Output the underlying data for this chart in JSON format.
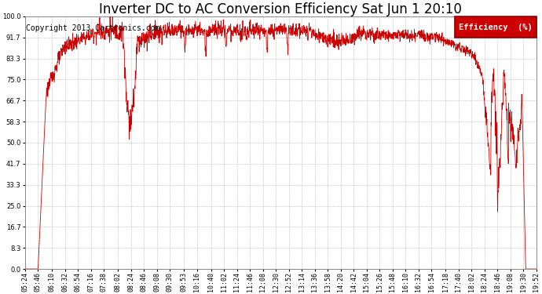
{
  "title": "Inverter DC to AC Conversion Efficiency Sat Jun 1 20:10",
  "copyright": "Copyright 2013 Cartronics.com",
  "legend_label": "Efficiency  (%)",
  "legend_bg": "#cc0000",
  "legend_fg": "#ffffff",
  "line_color": "#cc0000",
  "bg_color": "#ffffff",
  "grid_color": "#bbbbbb",
  "yticks": [
    0.0,
    8.3,
    16.7,
    25.0,
    33.3,
    41.7,
    50.0,
    58.3,
    66.7,
    75.0,
    83.3,
    91.7,
    100.0
  ],
  "xtick_labels": [
    "05:24",
    "05:46",
    "06:10",
    "06:32",
    "06:54",
    "07:16",
    "07:38",
    "08:02",
    "08:24",
    "08:46",
    "09:08",
    "09:30",
    "09:53",
    "10:16",
    "10:40",
    "11:02",
    "11:24",
    "11:46",
    "12:08",
    "12:30",
    "12:52",
    "13:14",
    "13:36",
    "13:58",
    "14:20",
    "14:42",
    "15:04",
    "15:26",
    "15:48",
    "16:10",
    "16:32",
    "16:54",
    "17:18",
    "17:40",
    "18:02",
    "18:24",
    "18:46",
    "19:08",
    "19:30",
    "19:52"
  ],
  "ylim": [
    0.0,
    100.0
  ],
  "title_fontsize": 12,
  "copyright_fontsize": 7,
  "tick_fontsize": 6,
  "figsize": [
    6.9,
    3.75
  ],
  "dpi": 100
}
